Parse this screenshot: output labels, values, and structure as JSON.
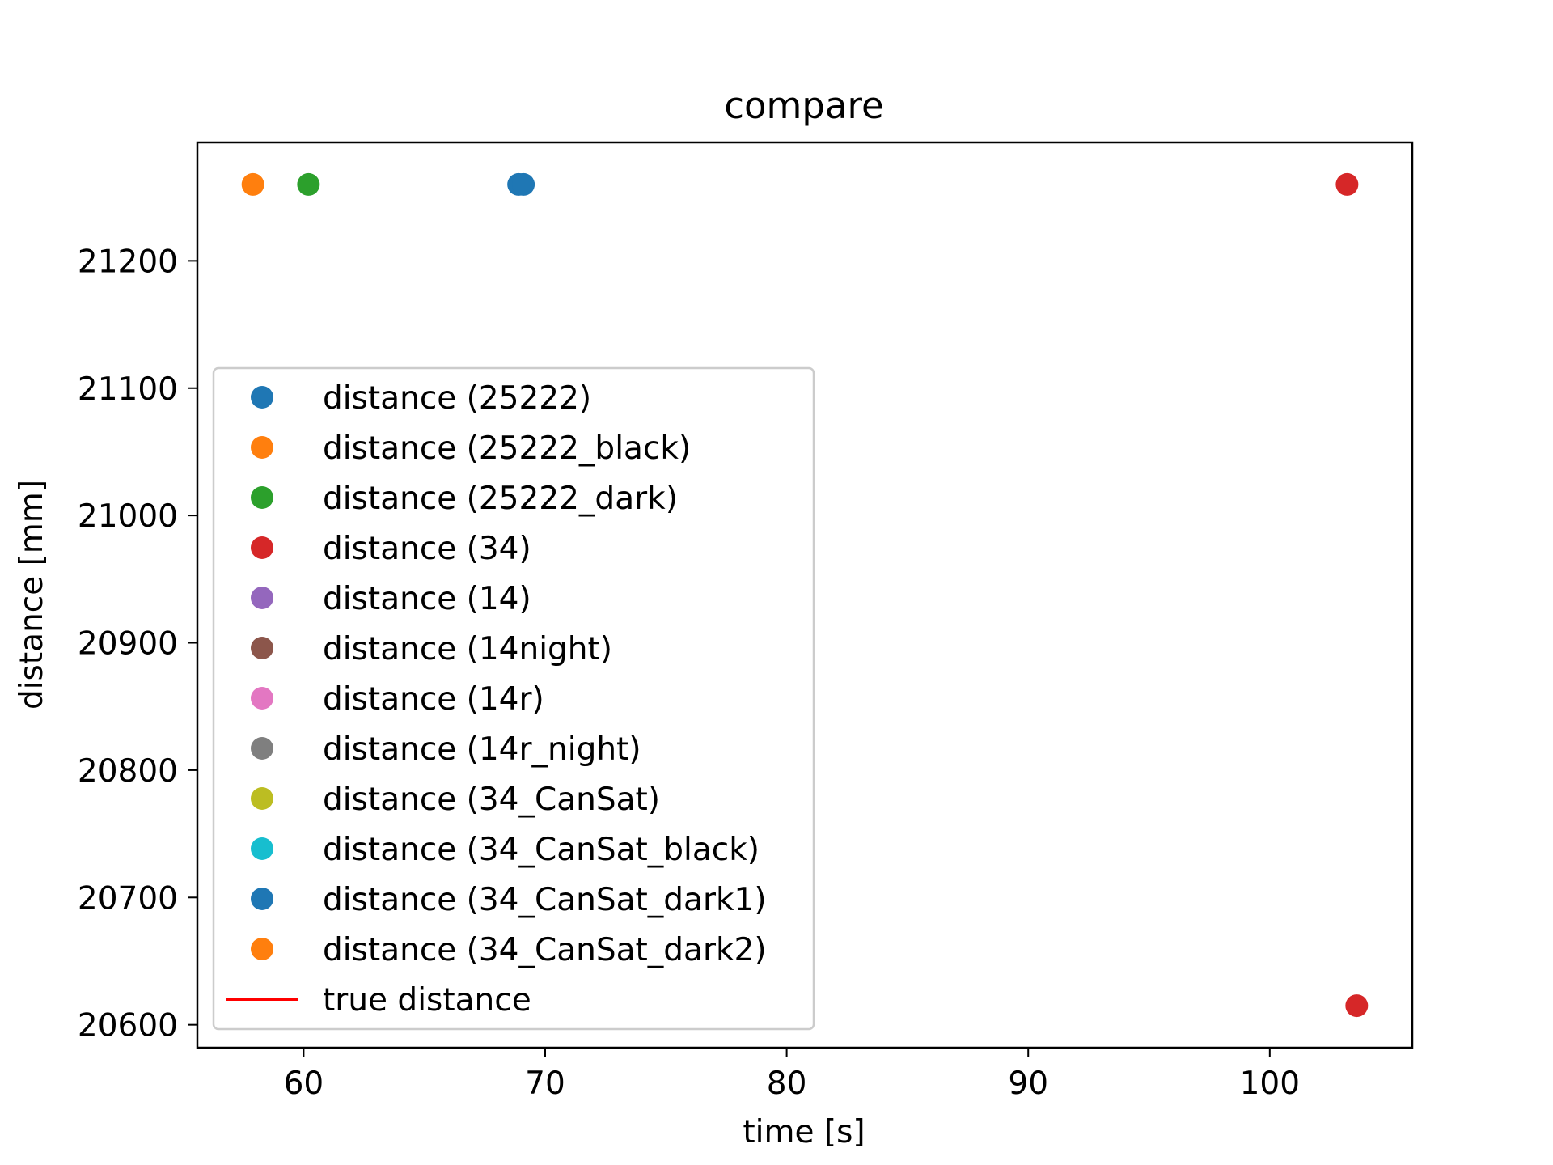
{
  "chart_data": {
    "type": "scatter",
    "title": "compare",
    "xlabel": "time [s]",
    "ylabel": "distance [mm]",
    "xlim": [
      55.6,
      105.9
    ],
    "ylim": [
      20582,
      21293
    ],
    "xticks": [
      60,
      70,
      80,
      90,
      100
    ],
    "yticks": [
      20600,
      20700,
      20800,
      20900,
      21000,
      21100,
      21200
    ],
    "grid": false,
    "legend_position": "lower-left",
    "series": [
      {
        "name": "distance (25222)",
        "kind": "scatter",
        "color": "#1f77b4",
        "points": [
          [
            68.9,
            21260
          ]
        ]
      },
      {
        "name": "distance (25222_black)",
        "kind": "scatter",
        "color": "#ff7f0e",
        "points": [
          [
            57.9,
            21260
          ]
        ]
      },
      {
        "name": "distance (25222_dark)",
        "kind": "scatter",
        "color": "#2ca02c",
        "points": [
          [
            60.2,
            21260
          ]
        ]
      },
      {
        "name": "distance (34)",
        "kind": "scatter",
        "color": "#d62728",
        "points": [
          [
            103.2,
            21260
          ],
          [
            103.6,
            20615
          ]
        ]
      },
      {
        "name": "distance (14)",
        "kind": "scatter",
        "color": "#9467bd",
        "points": []
      },
      {
        "name": "distance (14night)",
        "kind": "scatter",
        "color": "#8c564b",
        "points": []
      },
      {
        "name": "distance (14r)",
        "kind": "scatter",
        "color": "#e377c2",
        "points": []
      },
      {
        "name": "distance (14r_night)",
        "kind": "scatter",
        "color": "#7f7f7f",
        "points": []
      },
      {
        "name": "distance (34_CanSat)",
        "kind": "scatter",
        "color": "#bcbd22",
        "points": []
      },
      {
        "name": "distance (34_CanSat_black)",
        "kind": "scatter",
        "color": "#17becf",
        "points": []
      },
      {
        "name": "distance (34_CanSat_dark1)",
        "kind": "scatter",
        "color": "#1f77b4",
        "points": [
          [
            69.1,
            21260
          ]
        ]
      },
      {
        "name": "distance (34_CanSat_dark2)",
        "kind": "scatter",
        "color": "#ff7f0e",
        "points": []
      },
      {
        "name": "true distance",
        "kind": "line",
        "color": "#ff0000",
        "points": []
      }
    ]
  }
}
